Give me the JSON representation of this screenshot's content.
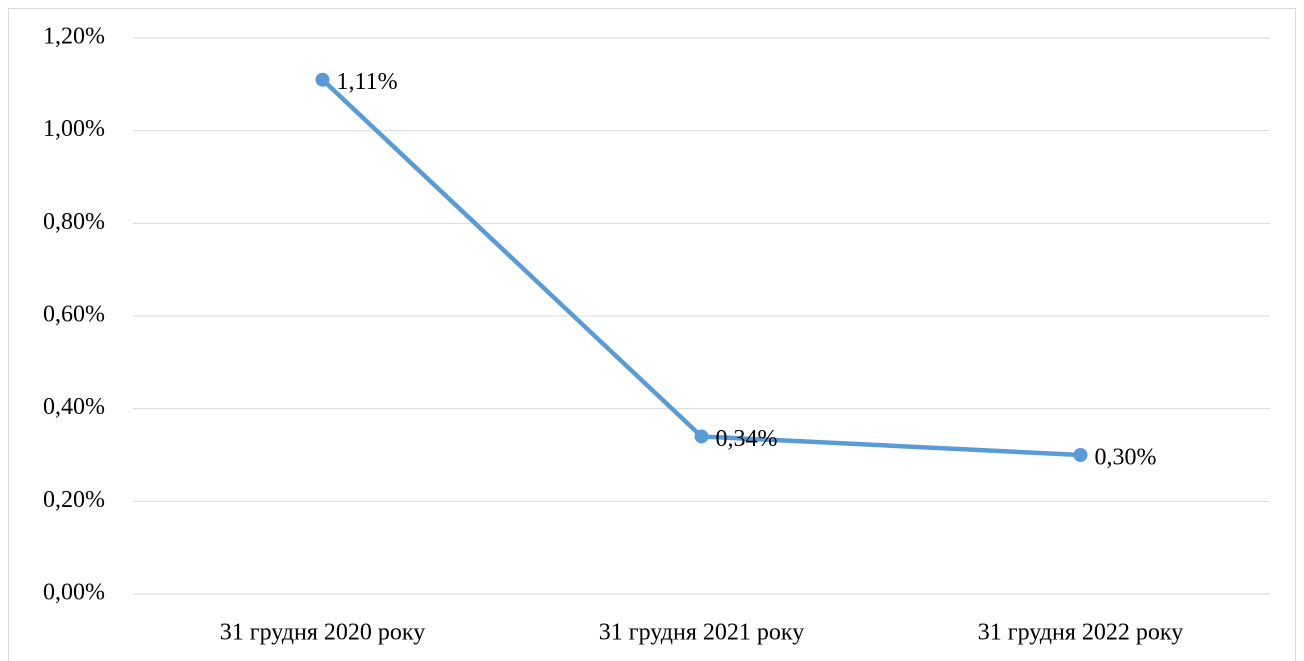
{
  "chart_data": {
    "type": "line",
    "categories": [
      "31 грудня 2020 року",
      "31 грудня 2021 року",
      "31 грудня 2022 року"
    ],
    "series": [
      {
        "name": "Series 1",
        "color": "#5b9bd5",
        "values": [
          1.11,
          0.34,
          0.3
        ],
        "value_labels": [
          "1,11%",
          "0,34%",
          "0,30%"
        ]
      }
    ],
    "ylim": [
      0,
      1.2
    ],
    "yticks": [
      {
        "value": 0,
        "label": "0,00%"
      },
      {
        "value": 0.2,
        "label": "0,20%"
      },
      {
        "value": 0.4,
        "label": "0,40%"
      },
      {
        "value": 0.6,
        "label": "0,60%"
      },
      {
        "value": 0.8,
        "label": "0,80%"
      },
      {
        "value": 1.0,
        "label": "1,00%"
      },
      {
        "value": 1.2,
        "label": "1,20%"
      }
    ],
    "grid": true
  }
}
